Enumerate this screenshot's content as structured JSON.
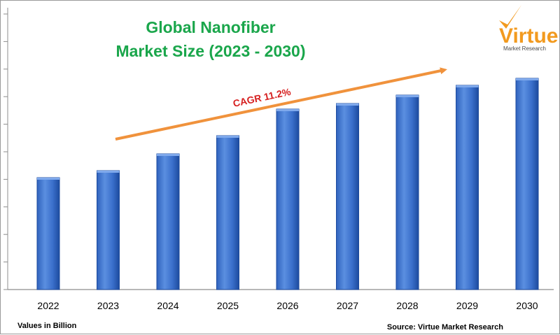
{
  "colors": {
    "title": "#1aa64b",
    "bar_light": "#5b8fe0",
    "bar_dark": "#1d4b9e",
    "arrow": "#f0923c",
    "cagr_text": "#d62020",
    "logo_orange": "#f29a1f",
    "logo_green": "#8dc63f",
    "axis": "#8c8c8c"
  },
  "chart_data": {
    "type": "bar",
    "title": "Global  Nanofiber",
    "subtitle": "Market Size  (2023 - 2030)",
    "categories": [
      "2022",
      "2023",
      "2024",
      "2025",
      "2026",
      "2027",
      "2028",
      "2029",
      "2030"
    ],
    "values": [
      40,
      42.5,
      48.5,
      55,
      64.5,
      66.5,
      69.5,
      73,
      75.5
    ],
    "ylim": [
      0,
      100
    ],
    "xlabel": "",
    "ylabel": "",
    "grid": false,
    "annotation": "CAGR 11.2%",
    "units_note": "Values in Billion",
    "source": "Source: Virtue Market Research"
  },
  "logo": {
    "name": "Virtue",
    "tagline": "Market Research"
  }
}
